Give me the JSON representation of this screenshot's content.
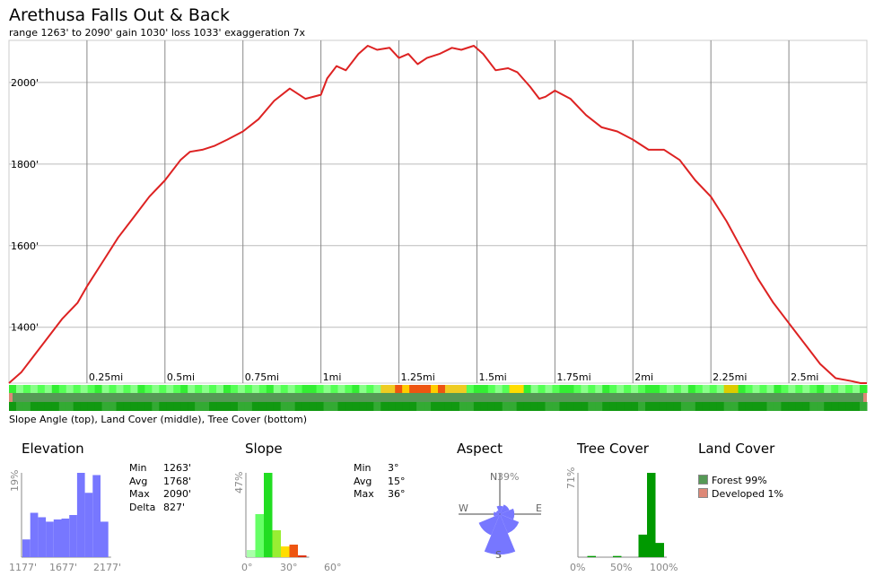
{
  "title": "Arethusa Falls Out & Back",
  "subtitle": "range 1263' to 2090'  gain 1030'  loss 1033'  exaggeration 7x",
  "caption": "Slope Angle (top), Land Cover (middle), Tree Cover (bottom)",
  "colors": {
    "profile_line": "#dd2222",
    "histogram_elev": "#7777ff",
    "aspect": "#7777ff",
    "tree": "#009900",
    "forest": "#559955",
    "developed": "#dd8877"
  },
  "chart_data": [
    {
      "id": "elevation-profile",
      "type": "line",
      "x_unit": "mi",
      "y_unit": "ft",
      "xlim": [
        0,
        2.75
      ],
      "ylim": [
        1263,
        2090
      ],
      "x_tick_labels": [
        "0.25mi",
        "0.5mi",
        "0.75mi",
        "1mi",
        "1.25mi",
        "1.5mi",
        "1.75mi",
        "2mi",
        "2.25mi",
        "2.5mi"
      ],
      "x_ticks": [
        0.25,
        0.5,
        0.75,
        1,
        1.25,
        1.5,
        1.75,
        2,
        2.25,
        2.5
      ],
      "y_tick_labels": [
        "1400'",
        "1600'",
        "1800'",
        "2000'"
      ],
      "y_ticks": [
        1400,
        1600,
        1800,
        2000
      ],
      "grid": true,
      "series": [
        {
          "x": [
            0,
            0.04,
            0.08,
            0.12,
            0.17,
            0.22,
            0.25,
            0.3,
            0.35,
            0.4,
            0.45,
            0.5,
            0.55,
            0.58,
            0.62,
            0.66,
            0.7,
            0.75,
            0.8,
            0.85,
            0.9,
            0.95,
            1.0,
            1.02,
            1.05,
            1.08,
            1.12,
            1.15,
            1.18,
            1.22,
            1.25,
            1.28,
            1.31,
            1.34,
            1.38,
            1.42,
            1.45,
            1.49,
            1.52,
            1.56,
            1.6,
            1.63,
            1.67,
            1.7,
            1.72,
            1.75,
            1.8,
            1.85,
            1.9,
            1.95,
            2.0,
            2.05,
            2.1,
            2.15,
            2.2,
            2.25,
            2.3,
            2.35,
            2.4,
            2.45,
            2.5,
            2.55,
            2.6,
            2.65,
            2.7,
            2.73,
            2.75
          ],
          "y": [
            1263,
            1290,
            1330,
            1370,
            1420,
            1460,
            1500,
            1560,
            1620,
            1670,
            1720,
            1760,
            1810,
            1830,
            1835,
            1845,
            1860,
            1880,
            1910,
            1955,
            1985,
            1960,
            1970,
            2010,
            2040,
            2030,
            2070,
            2090,
            2080,
            2085,
            2060,
            2070,
            2045,
            2060,
            2070,
            2085,
            2080,
            2090,
            2070,
            2030,
            2035,
            2025,
            1990,
            1960,
            1965,
            1980,
            1960,
            1920,
            1890,
            1880,
            1860,
            1835,
            1835,
            1810,
            1760,
            1720,
            1660,
            1590,
            1520,
            1460,
            1410,
            1360,
            1310,
            1275,
            1268,
            1263,
            1263
          ]
        }
      ]
    },
    {
      "id": "elevation-histogram",
      "type": "bar",
      "title": "Elevation",
      "x_tick_labels": [
        "1177'",
        "1677'",
        "2177'"
      ],
      "y_max_label": "19%",
      "ylim": [
        0,
        19
      ],
      "values": [
        4,
        10,
        9,
        8,
        8.5,
        8.7,
        9.5,
        19,
        14.5,
        18.5,
        8
      ]
    },
    {
      "id": "slope-histogram",
      "type": "bar",
      "title": "Slope",
      "x_tick_labels": [
        "0°",
        "30°",
        "60°"
      ],
      "y_max_label": "47%",
      "ylim": [
        0,
        47
      ],
      "values": [
        4,
        24,
        47,
        15,
        6,
        7,
        1
      ],
      "bar_colors": [
        "#aaffaa",
        "#66ff66",
        "#22dd22",
        "#99ee33",
        "#ffdd00",
        "#ee5511",
        "#dd3311"
      ]
    },
    {
      "id": "aspect-rose",
      "type": "pie",
      "title": "Aspect",
      "max_label": "39%",
      "direction_labels": [
        "N",
        "E",
        "S",
        "W"
      ],
      "values": [
        8,
        10,
        14,
        20,
        39,
        22,
        6,
        4
      ]
    },
    {
      "id": "tree-cover-histogram",
      "type": "bar",
      "title": "Tree Cover",
      "x_tick_labels": [
        "0%",
        "50%",
        "100%"
      ],
      "y_max_label": "71%",
      "ylim": [
        0,
        71
      ],
      "values": [
        0,
        1,
        0,
        0,
        1,
        0,
        0,
        19,
        71,
        12
      ]
    }
  ],
  "elevation_stats": {
    "labels": [
      "Min",
      "Avg",
      "Max",
      "Delta"
    ],
    "values": [
      "1263'",
      "1768'",
      "2090'",
      "827'"
    ]
  },
  "slope_stats": {
    "labels": [
      "Min",
      "Avg",
      "Max"
    ],
    "values": [
      "3°",
      "15°",
      "36°"
    ]
  },
  "land_cover": {
    "title": "Land Cover",
    "items": [
      "Forest 99%",
      "Developed 1%"
    ]
  }
}
